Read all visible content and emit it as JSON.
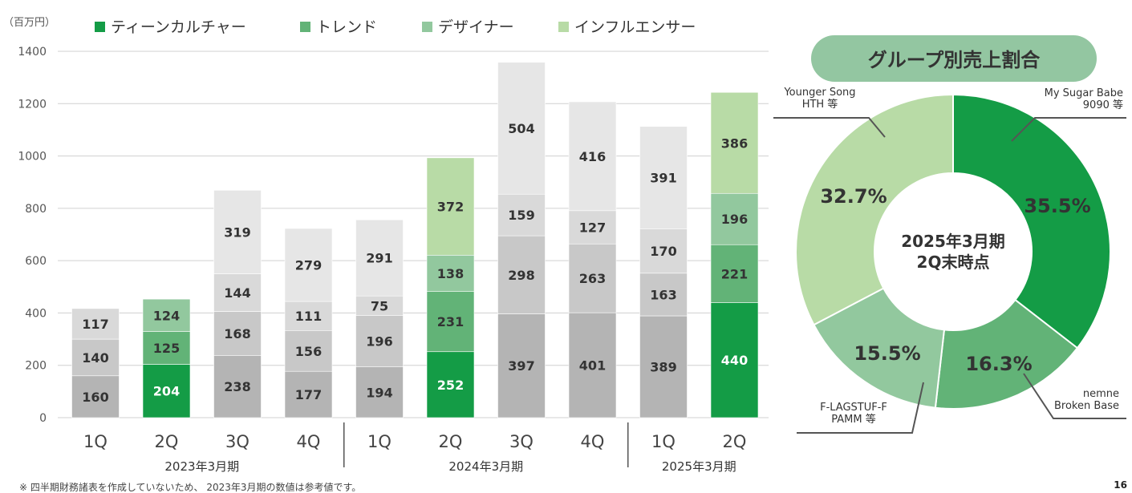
{
  "unit_label": "（百万円）",
  "footnote": "※ 四半期財務諸表を作成していないため、 2023年3月期の数値は参考値です。",
  "page_number": "16",
  "colors": {
    "teen": "#149c46",
    "trend": "#62b377",
    "designer": "#92c89e",
    "influencer": "#b8dba6",
    "gray_bottom": "#b4b4b4",
    "gray_second": "#c8c8c8",
    "gray_third": "#d9d9d9",
    "gray_top": "#e6e6e6",
    "pill_bg": "#93c6a1"
  },
  "chart_data": [
    {
      "type": "bar",
      "stacked": true,
      "legend_position": "top",
      "ylim": [
        0,
        1400
      ],
      "yticks": [
        0,
        200,
        400,
        600,
        800,
        1000,
        1200,
        1400
      ],
      "grid": true,
      "series": [
        {
          "name": "ティーンカルチャー",
          "color_key": "teen"
        },
        {
          "name": "トレンド",
          "color_key": "trend"
        },
        {
          "name": "デザイナー",
          "color_key": "designer"
        },
        {
          "name": "インフルエンサー",
          "color_key": "influencer"
        }
      ],
      "period_groups": [
        {
          "label": "2023年3月期",
          "from": 0,
          "to": 3
        },
        {
          "label": "2024年3月期",
          "from": 4,
          "to": 7
        },
        {
          "label": "2025年3月期",
          "from": 8,
          "to": 9
        }
      ],
      "bars": [
        {
          "category": "1Q",
          "segments": [
            {
              "value": 160,
              "fill": "gray_bottom"
            },
            {
              "value": 140,
              "fill": "gray_second"
            },
            {
              "value": 117,
              "fill": "gray_third"
            }
          ]
        },
        {
          "category": "2Q",
          "segments": [
            {
              "value": 204,
              "fill": "teen"
            },
            {
              "value": 125,
              "fill": "trend"
            },
            {
              "value": 124,
              "fill": "designer"
            }
          ]
        },
        {
          "category": "3Q",
          "segments": [
            {
              "value": 238,
              "fill": "gray_bottom"
            },
            {
              "value": 168,
              "fill": "gray_second"
            },
            {
              "value": 144,
              "fill": "gray_third"
            },
            {
              "value": 319,
              "fill": "gray_top"
            }
          ]
        },
        {
          "category": "4Q",
          "segments": [
            {
              "value": 177,
              "fill": "gray_bottom"
            },
            {
              "value": 156,
              "fill": "gray_second"
            },
            {
              "value": 111,
              "fill": "gray_third"
            },
            {
              "value": 279,
              "fill": "gray_top"
            }
          ]
        },
        {
          "category": "1Q",
          "segments": [
            {
              "value": 194,
              "fill": "gray_bottom"
            },
            {
              "value": 196,
              "fill": "gray_second"
            },
            {
              "value": 75,
              "fill": "gray_third"
            },
            {
              "value": 291,
              "fill": "gray_top"
            }
          ]
        },
        {
          "category": "2Q",
          "segments": [
            {
              "value": 252,
              "fill": "teen"
            },
            {
              "value": 231,
              "fill": "trend"
            },
            {
              "value": 138,
              "fill": "designer"
            },
            {
              "value": 372,
              "fill": "influencer"
            }
          ]
        },
        {
          "category": "3Q",
          "segments": [
            {
              "value": 397,
              "fill": "gray_bottom"
            },
            {
              "value": 298,
              "fill": "gray_second"
            },
            {
              "value": 159,
              "fill": "gray_third"
            },
            {
              "value": 504,
              "fill": "gray_top"
            }
          ]
        },
        {
          "category": "4Q",
          "segments": [
            {
              "value": 401,
              "fill": "gray_bottom"
            },
            {
              "value": 263,
              "fill": "gray_second"
            },
            {
              "value": 127,
              "fill": "gray_third"
            },
            {
              "value": 416,
              "fill": "gray_top"
            }
          ]
        },
        {
          "category": "1Q",
          "segments": [
            {
              "value": 389,
              "fill": "gray_bottom"
            },
            {
              "value": 163,
              "fill": "gray_second"
            },
            {
              "value": 170,
              "fill": "gray_third"
            },
            {
              "value": 391,
              "fill": "gray_top"
            }
          ]
        },
        {
          "category": "2Q",
          "segments": [
            {
              "value": 440,
              "fill": "teen"
            },
            {
              "value": 221,
              "fill": "trend"
            },
            {
              "value": 196,
              "fill": "designer"
            },
            {
              "value": 386,
              "fill": "influencer"
            }
          ]
        }
      ]
    },
    {
      "type": "pie",
      "donut": true,
      "title": "グループ別売上割合",
      "center_label": [
        "2025年3月期",
        "2Q末時点"
      ],
      "slices": [
        {
          "label": "35.5%",
          "value": 35.5,
          "color_key": "teen",
          "callout": [
            "My Sugar Babe",
            "9090 等"
          ]
        },
        {
          "label": "16.3%",
          "value": 16.3,
          "color_key": "trend",
          "callout": [
            "nemne",
            "Broken Base"
          ]
        },
        {
          "label": "15.5%",
          "value": 15.5,
          "color_key": "designer",
          "callout": [
            "F-LAGSTUF-F",
            "PAMM 等"
          ]
        },
        {
          "label": "32.7%",
          "value": 32.7,
          "color_key": "influencer",
          "callout": [
            "Younger Song",
            "HTH 等"
          ]
        }
      ]
    }
  ]
}
